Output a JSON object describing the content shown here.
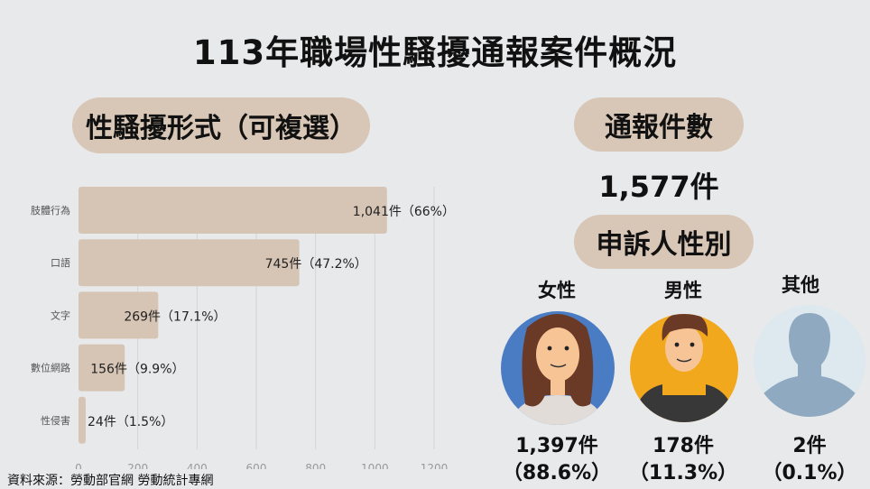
{
  "title": "113年職場性騷擾通報案件概況",
  "left_section": {
    "label": "性騷擾形式（可複選）"
  },
  "total_section": {
    "label": "通報件數",
    "value": "1,577件"
  },
  "gender_section": {
    "label": "申訴人性別",
    "groups": [
      {
        "label": "女性",
        "count": "1,397件",
        "pct": "（88.6%）",
        "avatar": "woman-avatar",
        "color": "#4a7cc4"
      },
      {
        "label": "男性",
        "count": "178件",
        "pct": "（11.3%）",
        "avatar": "man-avatar",
        "color": "#f2a81d"
      },
      {
        "label": "其他",
        "count": "2件",
        "pct": "（0.1%）",
        "avatar": "silhouette-avatar",
        "color": "#dde8ef"
      }
    ]
  },
  "chart_data": {
    "type": "bar",
    "orientation": "horizontal",
    "categories": [
      "肢體行為",
      "口語",
      "文字",
      "數位網路",
      "性侵害"
    ],
    "values": [
      1041,
      745,
      269,
      156,
      24
    ],
    "data_labels": [
      "1,041件（66%）",
      "745件（47.2%）",
      "269件（17.1%）",
      "156件（9.9%）",
      "24件（1.5%）"
    ],
    "xlim": [
      0,
      1200
    ],
    "xticks": [
      "0",
      "200",
      "400",
      "600",
      "800",
      "1000",
      "1200"
    ],
    "grid": true,
    "bar_color": "#d6c4b4"
  },
  "source": "資料來源：勞動部官網 勞動統計專網"
}
